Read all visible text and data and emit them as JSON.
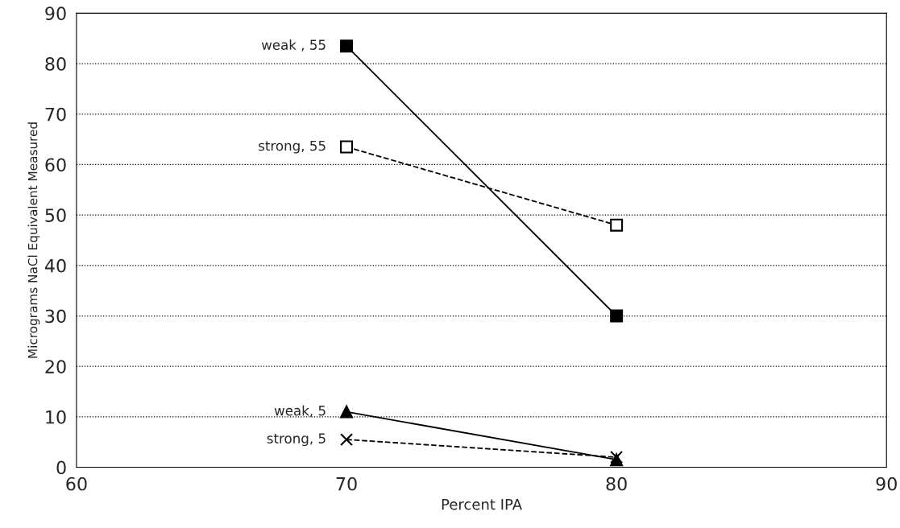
{
  "chart_data": {
    "type": "line",
    "xlabel": "Percent IPA",
    "ylabel": "Micrograms NaCl Equivalent Measured",
    "x": [
      70,
      80
    ],
    "xlim": [
      60,
      90
    ],
    "xticks": [
      60,
      70,
      80,
      90
    ],
    "ylim": [
      0,
      90
    ],
    "yticks": [
      0,
      10,
      20,
      30,
      40,
      50,
      60,
      70,
      80,
      90
    ],
    "grid": "y",
    "legend": false,
    "series": [
      {
        "name": "weak , 55",
        "color": "#000000",
        "values": [
          83.5,
          30
        ],
        "marker": "square",
        "line_style": "solid"
      },
      {
        "name": "strong, 55",
        "color": "#000000",
        "values": [
          63.5,
          48
        ],
        "marker": "square",
        "line_style": "dashed"
      },
      {
        "name": "weak, 5",
        "color": "#000000",
        "values": [
          11,
          1.5
        ],
        "marker": "triangle",
        "line_style": "solid"
      },
      {
        "name": "strong, 5",
        "color": "#000000",
        "values": [
          5.5,
          2
        ],
        "marker": "cross",
        "line_style": "dashed"
      }
    ]
  }
}
